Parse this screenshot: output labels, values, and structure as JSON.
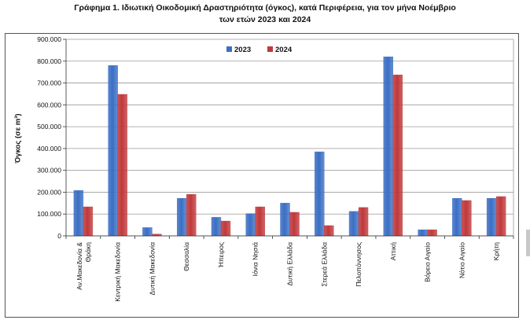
{
  "chart_data": {
    "type": "bar",
    "title": "Γράφημα 1.  Ιδιωτική Οικοδομική Δραστηριότητα (όγκος), κατά Περιφέρεια, για τον μήνα Νοέμβριο",
    "subtitle": "των ετών 2023 και 2024",
    "xlabel": "",
    "ylabel": "Όγκος (σε m³)",
    "ylim": [
      0,
      900000
    ],
    "yticks": [
      "0",
      "100.000",
      "200.000",
      "300.000",
      "400.000",
      "500.000",
      "600.000",
      "700.000",
      "800.000",
      "900.000"
    ],
    "grid": true,
    "legend": "top-center",
    "categories": [
      [
        "Αν.Μακεδονία &",
        "Θράκη"
      ],
      [
        "Κεντρική Μακεδονία"
      ],
      [
        "Δυτική Μακεδονία"
      ],
      [
        "Θεσσαλία"
      ],
      [
        "Ήπειρος"
      ],
      [
        "Ιόνια Νησιά"
      ],
      [
        "Δυτική Ελλάδα"
      ],
      [
        "Στερεά Ελλάδα"
      ],
      [
        "Πελοπόννησος"
      ],
      [
        "Αττική"
      ],
      [
        "Βόρειο Αιγαίο"
      ],
      [
        "Νότιο Αιγαίο"
      ],
      [
        "Κρήτη"
      ]
    ],
    "series": [
      {
        "name": "2023",
        "color": "#3B6FC4",
        "values": [
          208000,
          780000,
          38000,
          172000,
          85000,
          102000,
          150000,
          385000,
          112000,
          820000,
          28000,
          172000,
          172000
        ]
      },
      {
        "name": "2024",
        "color": "#C0393B",
        "values": [
          133000,
          648000,
          8000,
          190000,
          68000,
          133000,
          108000,
          47000,
          130000,
          737000,
          28000,
          162000,
          180000
        ]
      }
    ]
  }
}
